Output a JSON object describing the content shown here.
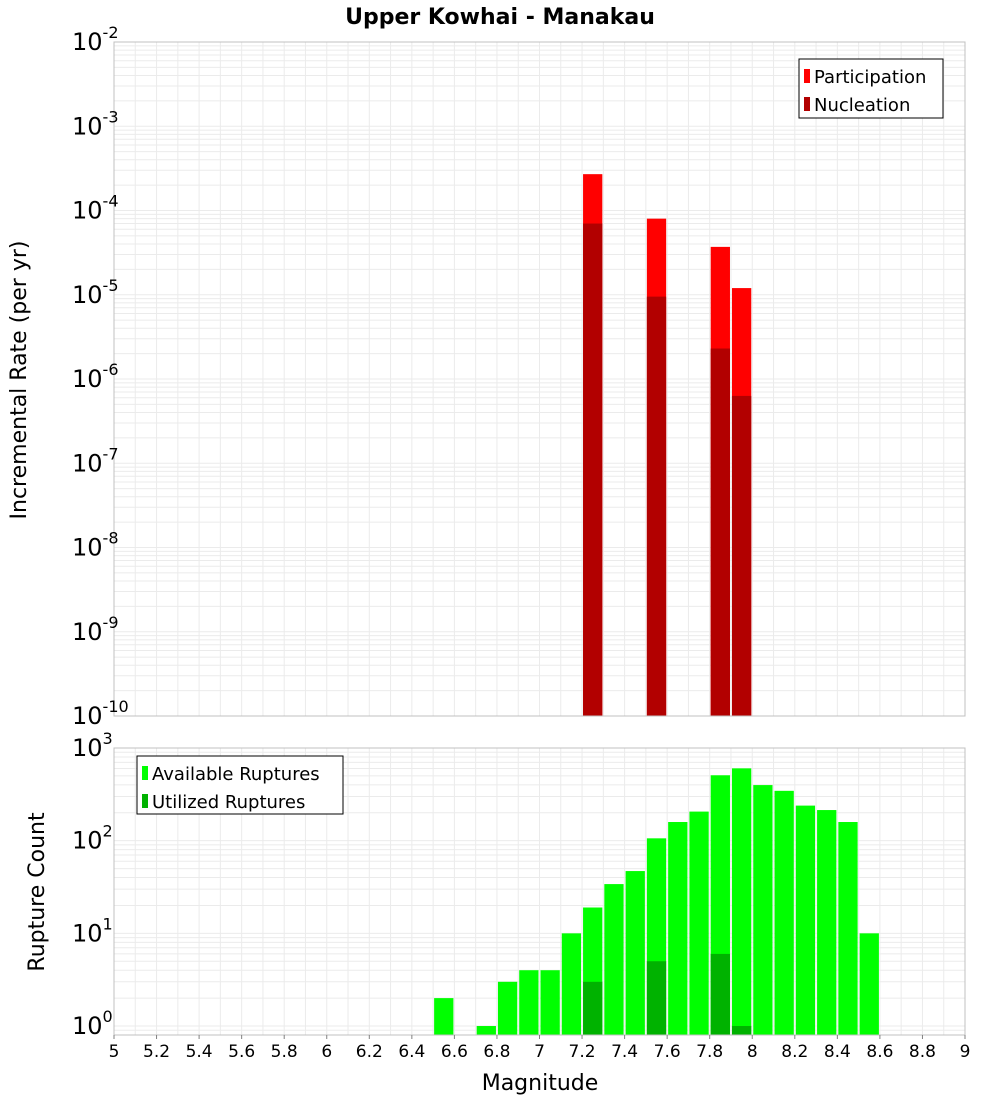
{
  "title": "Upper Kowhai - Manakau",
  "colors": {
    "participation": "#ff0000",
    "nucleation": "#b20000",
    "available": "#00ff00",
    "utilized": "#00b200",
    "grid": "#ebebeb",
    "frame": "#c0c0c0"
  },
  "chart_data": [
    {
      "type": "bar",
      "ylabel": "Incremental Rate (per yr)",
      "yscale": "log",
      "ylim": [
        1e-10,
        0.01
      ],
      "xlim": [
        5,
        9
      ],
      "ytick_exponents": [
        "-2",
        "-3",
        "-4",
        "-5",
        "-6",
        "-7",
        "-8",
        "-9",
        "-10"
      ],
      "legend": {
        "position": "top-right",
        "entries": [
          "Participation",
          "Nucleation"
        ]
      },
      "series": [
        {
          "name": "Participation",
          "x": [
            7.25,
            7.55,
            7.85,
            7.95
          ],
          "values": [
            0.00027,
            8e-05,
            3.7e-05,
            1.2e-05
          ]
        },
        {
          "name": "Nucleation",
          "x": [
            7.25,
            7.55,
            7.85,
            7.95
          ],
          "values": [
            7e-05,
            9.5e-06,
            2.3e-06,
            6.3e-07
          ]
        }
      ]
    },
    {
      "type": "bar",
      "ylabel": "Rupture Count",
      "xlabel": "Magnitude",
      "yscale": "log",
      "ylim": [
        0.8,
        1000
      ],
      "xlim": [
        5,
        9
      ],
      "ytick_exponents": [
        "3",
        "2",
        "1",
        "0"
      ],
      "xticks": [
        "5",
        "5.2",
        "5.4",
        "5.6",
        "5.8",
        "6",
        "6.2",
        "6.4",
        "6.6",
        "6.8",
        "7",
        "7.2",
        "7.4",
        "7.6",
        "7.8",
        "8",
        "8.2",
        "8.4",
        "8.6",
        "8.8",
        "9"
      ],
      "legend": {
        "position": "top-left",
        "entries": [
          "Available Ruptures",
          "Utilized Ruptures"
        ]
      },
      "series": [
        {
          "name": "Available Ruptures",
          "x": [
            6.55,
            6.75,
            6.85,
            6.95,
            7.05,
            7.15,
            7.25,
            7.35,
            7.45,
            7.55,
            7.65,
            7.75,
            7.85,
            7.95,
            8.05,
            8.15,
            8.25,
            8.35,
            8.45,
            8.55
          ],
          "values": [
            2,
            1,
            3,
            4,
            4,
            10,
            19,
            34,
            47,
            106,
            159,
            206,
            508,
            603,
            398,
            345,
            239,
            214,
            159,
            10
          ]
        },
        {
          "name": "Utilized Ruptures",
          "x": [
            7.25,
            7.55,
            7.85,
            7.95
          ],
          "values": [
            3,
            5,
            6,
            1
          ]
        }
      ]
    }
  ]
}
